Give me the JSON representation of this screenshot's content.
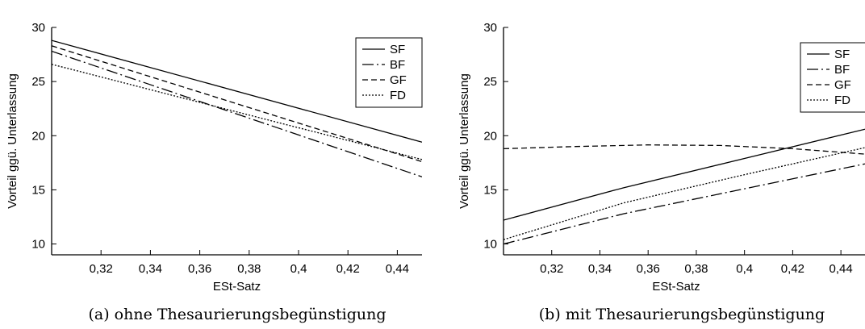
{
  "chart_data": [
    {
      "type": "line",
      "panel": "a",
      "caption": "(a) ohne Thesaurierungsbegünstigung",
      "xlabel": "ESt-Satz",
      "ylabel": "Vorteil ggü. Unterlassung",
      "xlim": [
        0.3,
        0.45
      ],
      "ylim": [
        9,
        30
      ],
      "xticks": [
        0.32,
        0.34,
        0.36,
        0.38,
        0.4,
        0.42,
        0.44
      ],
      "xtick_labels": [
        "0,32",
        "0,34",
        "0,36",
        "0,38",
        "0,4",
        "0,42",
        "0,44"
      ],
      "yticks": [
        10,
        15,
        20,
        25,
        30
      ],
      "ytick_labels": [
        "10",
        "15",
        "20",
        "25",
        "30"
      ],
      "grid": false,
      "legend_position": "top-right",
      "x": [
        0.3,
        0.45
      ],
      "series": [
        {
          "name": "SF",
          "style": "solid",
          "x": [
            0.3,
            0.45
          ],
          "values": [
            28.8,
            19.4
          ]
        },
        {
          "name": "BF",
          "style": "dashdot",
          "x": [
            0.3,
            0.45
          ],
          "values": [
            27.8,
            16.2
          ]
        },
        {
          "name": "GF",
          "style": "dashed",
          "x": [
            0.3,
            0.45
          ],
          "values": [
            28.3,
            17.6
          ]
        },
        {
          "name": "FD",
          "style": "dotted",
          "x": [
            0.3,
            0.45
          ],
          "values": [
            26.6,
            17.8
          ]
        }
      ]
    },
    {
      "type": "line",
      "panel": "b",
      "caption": "(b) mit Thesaurierungsbegünstigung",
      "xlabel": "ESt-Satz",
      "ylabel": "Vorteil ggü. Unterlassung",
      "xlim": [
        0.3,
        0.45
      ],
      "ylim": [
        9,
        30
      ],
      "xticks": [
        0.32,
        0.34,
        0.36,
        0.38,
        0.4,
        0.42,
        0.44
      ],
      "xtick_labels": [
        "0,32",
        "0,34",
        "0,36",
        "0,38",
        "0,4",
        "0,42",
        "0,44"
      ],
      "yticks": [
        10,
        15,
        20,
        25,
        30
      ],
      "ytick_labels": [
        "10",
        "15",
        "20",
        "25",
        "30"
      ],
      "grid": false,
      "legend_position": "top-right",
      "series": [
        {
          "name": "SF",
          "style": "solid",
          "x": [
            0.3,
            0.35,
            0.4,
            0.45
          ],
          "values": [
            12.2,
            15.2,
            17.9,
            20.6
          ]
        },
        {
          "name": "BF",
          "style": "dashdot",
          "x": [
            0.3,
            0.35,
            0.4,
            0.45
          ],
          "values": [
            10.0,
            12.8,
            15.1,
            17.4
          ]
        },
        {
          "name": "GF",
          "style": "dashed",
          "x": [
            0.3,
            0.33,
            0.36,
            0.39,
            0.42,
            0.45
          ],
          "values": [
            18.8,
            19.0,
            19.15,
            19.1,
            18.8,
            18.3
          ]
        },
        {
          "name": "FD",
          "style": "dotted",
          "x": [
            0.3,
            0.35,
            0.4,
            0.45
          ],
          "values": [
            10.4,
            13.8,
            16.4,
            18.9
          ]
        }
      ]
    }
  ]
}
